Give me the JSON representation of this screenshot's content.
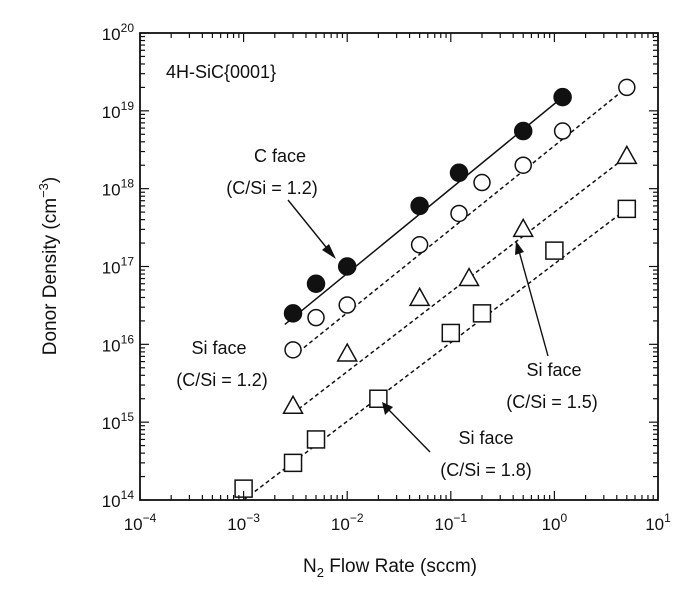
{
  "chart_data": {
    "type": "scatter",
    "title": "",
    "panel_label": "4H-SiC{0001}",
    "x_scale": "log",
    "y_scale": "log",
    "xlim": [
      0.0001,
      10
    ],
    "ylim": [
      100000000000000.0,
      1e+20
    ],
    "xlabel_main": "N",
    "xlabel_sub": "2",
    "xlabel_rest": " Flow Rate (sccm)",
    "ylabel_main": "Donor Density (cm",
    "ylabel_sup": "−3",
    "ylabel_end": ")",
    "x_ticks": [
      {
        "base": "10",
        "exp": "−4",
        "value": 0.0001
      },
      {
        "base": "10",
        "exp": "−3",
        "value": 0.001
      },
      {
        "base": "10",
        "exp": "−2",
        "value": 0.01
      },
      {
        "base": "10",
        "exp": "−1",
        "value": 0.1
      },
      {
        "base": "10",
        "exp": "0",
        "value": 1
      },
      {
        "base": "10",
        "exp": "1",
        "value": 10
      }
    ],
    "y_ticks": [
      {
        "base": "10",
        "exp": "14",
        "value": 100000000000000.0
      },
      {
        "base": "10",
        "exp": "15",
        "value": 1000000000000000.0
      },
      {
        "base": "10",
        "exp": "16",
        "value": 1e+16
      },
      {
        "base": "10",
        "exp": "17",
        "value": 1e+17
      },
      {
        "base": "10",
        "exp": "18",
        "value": 1e+18
      },
      {
        "base": "10",
        "exp": "19",
        "value": 1e+19
      },
      {
        "base": "10",
        "exp": "20",
        "value": 1e+20
      }
    ],
    "series": [
      {
        "label_line1": "C face",
        "label_line2": "(C/Si = 1.2)",
        "marker": "filled-circle",
        "line": "solid",
        "points": [
          {
            "x": 0.003,
            "y": 2.5e+16
          },
          {
            "x": 0.005,
            "y": 6e+16
          },
          {
            "x": 0.01,
            "y": 1e+17
          },
          {
            "x": 0.05,
            "y": 6e+17
          },
          {
            "x": 0.12,
            "y": 1.6e+18
          },
          {
            "x": 0.5,
            "y": 5.5e+18
          },
          {
            "x": 1.2,
            "y": 1.5e+19
          }
        ],
        "fit": [
          [
            0.0025,
            1.8e+16
          ],
          [
            1.2,
            1.5e+19
          ]
        ]
      },
      {
        "label_line1": "Si face",
        "label_line2": "(C/Si = 1.2)",
        "marker": "open-circle",
        "line": "dashed",
        "points": [
          {
            "x": 0.003,
            "y": 8500000000000000.0
          },
          {
            "x": 0.005,
            "y": 2.2e+16
          },
          {
            "x": 0.01,
            "y": 3.2e+16
          },
          {
            "x": 0.05,
            "y": 1.9e+17
          },
          {
            "x": 0.12,
            "y": 4.8e+17
          },
          {
            "x": 0.2,
            "y": 1.2e+18
          },
          {
            "x": 0.5,
            "y": 2e+18
          },
          {
            "x": 1.2,
            "y": 5.5e+18
          },
          {
            "x": 5,
            "y": 2e+19
          }
        ],
        "fit": [
          [
            0.003,
            7000000000000000.0
          ],
          [
            5,
            2e+19
          ]
        ]
      },
      {
        "label_line1": "Si face",
        "label_line2": "(C/Si = 1.5)",
        "marker": "open-triangle",
        "line": "dashed",
        "points": [
          {
            "x": 0.003,
            "y": 1600000000000000.0
          },
          {
            "x": 0.01,
            "y": 7500000000000000.0
          },
          {
            "x": 0.05,
            "y": 3.9e+16
          },
          {
            "x": 0.15,
            "y": 7e+16
          },
          {
            "x": 0.5,
            "y": 3e+17
          },
          {
            "x": 5,
            "y": 2.6e+18
          }
        ],
        "fit": [
          [
            0.003,
            1300000000000000.0
          ],
          [
            5,
            2.6e+18
          ]
        ]
      },
      {
        "label_line1": "Si face",
        "label_line2": "(C/Si = 1.8)",
        "marker": "open-square",
        "line": "dashed",
        "points": [
          {
            "x": 0.001,
            "y": 140000000000000.0
          },
          {
            "x": 0.003,
            "y": 300000000000000.0
          },
          {
            "x": 0.005,
            "y": 600000000000000.0
          },
          {
            "x": 0.02,
            "y": 2000000000000000.0
          },
          {
            "x": 0.1,
            "y": 1.4e+16
          },
          {
            "x": 0.2,
            "y": 2.5e+16
          },
          {
            "x": 1,
            "y": 1.6e+17
          },
          {
            "x": 5,
            "y": 5.5e+17
          }
        ],
        "fit": [
          [
            0.001,
            100000000000000.0
          ],
          [
            5,
            5.5e+17
          ]
        ]
      }
    ]
  }
}
